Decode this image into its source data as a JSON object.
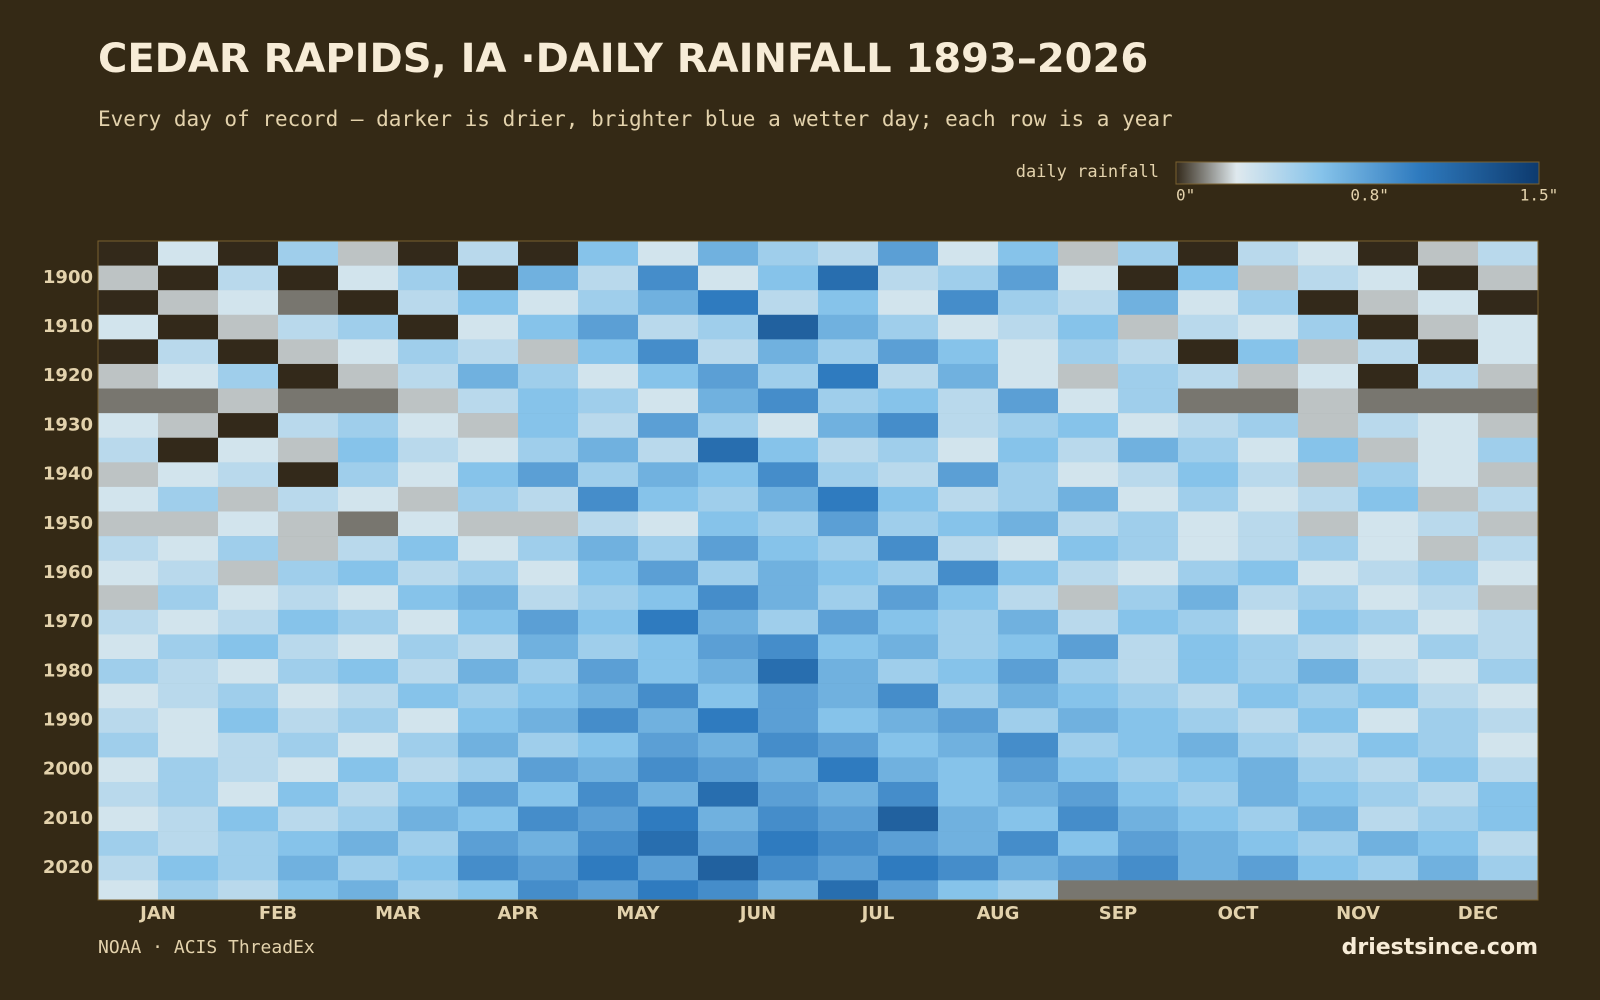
{
  "chart_data": {
    "type": "heatmap",
    "title": "CEDAR RAPIDS, IA ·DAILY RAINFALL 1893–2026",
    "subtitle": "Every day of record — darker is drier, brighter blue a wetter day; each row is a year",
    "legend_title": "daily rainfall",
    "colorbar_lim": [
      0,
      1.5
    ],
    "colorbar_ticks": [
      {
        "value": 0,
        "label": "0\""
      },
      {
        "value": 0.8,
        "label": "0.8\""
      },
      {
        "value": 1.5,
        "label": "1.5\""
      }
    ],
    "colorscale": [
      [
        0,
        "#33291a"
      ],
      [
        0.25,
        "#dfe9ee"
      ],
      [
        0.6,
        "#86c3ea"
      ],
      [
        1.0,
        "#2f7bbf"
      ],
      [
        1.5,
        "#0d3a6e"
      ]
    ],
    "categories": [
      "JAN",
      "FEB",
      "MAR",
      "APR",
      "MAY",
      "JUN",
      "JUL",
      "AUG",
      "SEP",
      "OCT",
      "NOV",
      "DEC"
    ],
    "ylim": [
      1892.5,
      2026.5
    ],
    "yticks": [
      1900,
      1910,
      1920,
      1930,
      1940,
      1950,
      1960,
      1970,
      1980,
      1990,
      2000,
      2010,
      2020
    ],
    "rows": [
      1893,
      1898,
      1903,
      1908,
      1913,
      1918,
      1923,
      1928,
      1933,
      1938,
      1943,
      1948,
      1953,
      1958,
      1963,
      1968,
      1973,
      1978,
      1983,
      1988,
      1993,
      1998,
      2003,
      2008,
      2013,
      2018,
      2023
    ],
    "values": [
      [
        0,
        0.3,
        0,
        0.5,
        0.2,
        0,
        0.4,
        0,
        0.6,
        0.3,
        0.7,
        0.5,
        0.4,
        0.8,
        0.3,
        0.6,
        0.2,
        0.5,
        0,
        0.4,
        0.3,
        0,
        0.2,
        0.4
      ],
      [
        0.2,
        0,
        0.4,
        0,
        0.3,
        0.5,
        0,
        0.7,
        0.4,
        0.9,
        0.3,
        0.6,
        1.1,
        0.4,
        0.5,
        0.8,
        0.3,
        0,
        0.6,
        0.2,
        0.4,
        0.3,
        0,
        0.2
      ],
      [
        0,
        0.2,
        0.3,
        0.1,
        0,
        0.4,
        0.6,
        0.3,
        0.5,
        0.7,
        1.0,
        0.4,
        0.6,
        0.3,
        0.9,
        0.5,
        0.4,
        0.7,
        0.3,
        0.5,
        0,
        0.2,
        0.3,
        0
      ],
      [
        0.3,
        0,
        0.2,
        0.4,
        0.5,
        0,
        0.3,
        0.6,
        0.8,
        0.4,
        0.5,
        1.2,
        0.7,
        0.5,
        0.3,
        0.4,
        0.6,
        0.2,
        0.4,
        0.3,
        0.5,
        0,
        0.2,
        0.3
      ],
      [
        0,
        0.4,
        0,
        0.2,
        0.3,
        0.5,
        0.4,
        0.2,
        0.6,
        0.9,
        0.4,
        0.7,
        0.5,
        0.8,
        0.6,
        0.3,
        0.5,
        0.4,
        0,
        0.6,
        0.2,
        0.4,
        0,
        0.3
      ],
      [
        0.2,
        0.3,
        0.5,
        0,
        0.2,
        0.4,
        0.7,
        0.5,
        0.3,
        0.6,
        0.8,
        0.5,
        1.0,
        0.4,
        0.7,
        0.3,
        0.2,
        0.5,
        0.4,
        0.2,
        0.3,
        0,
        0.4,
        0.2
      ],
      [
        0.1,
        0.1,
        0.2,
        0.1,
        0.1,
        0.2,
        0.4,
        0.6,
        0.5,
        0.3,
        0.7,
        0.9,
        0.5,
        0.6,
        0.4,
        0.8,
        0.3,
        0.5,
        0.1,
        0.1,
        0.2,
        0.1,
        0.1,
        0.1
      ],
      [
        0.3,
        0.2,
        0,
        0.4,
        0.5,
        0.3,
        0.2,
        0.6,
        0.4,
        0.8,
        0.5,
        0.3,
        0.7,
        0.9,
        0.4,
        0.5,
        0.6,
        0.3,
        0.4,
        0.5,
        0.2,
        0.4,
        0.3,
        0.2
      ],
      [
        0.4,
        0,
        0.3,
        0.2,
        0.6,
        0.4,
        0.3,
        0.5,
        0.7,
        0.4,
        1.1,
        0.6,
        0.4,
        0.5,
        0.3,
        0.6,
        0.4,
        0.7,
        0.5,
        0.3,
        0.6,
        0.2,
        0.3,
        0.5
      ],
      [
        0.2,
        0.3,
        0.4,
        0,
        0.5,
        0.3,
        0.6,
        0.8,
        0.5,
        0.7,
        0.6,
        0.9,
        0.5,
        0.4,
        0.8,
        0.5,
        0.3,
        0.4,
        0.6,
        0.4,
        0.2,
        0.5,
        0.3,
        0.2
      ],
      [
        0.3,
        0.5,
        0.2,
        0.4,
        0.3,
        0.2,
        0.5,
        0.4,
        0.9,
        0.6,
        0.5,
        0.7,
        1.0,
        0.6,
        0.4,
        0.5,
        0.7,
        0.3,
        0.5,
        0.3,
        0.4,
        0.6,
        0.2,
        0.4
      ],
      [
        0.2,
        0.2,
        0.3,
        0.2,
        0.1,
        0.3,
        0.2,
        0.2,
        0.4,
        0.3,
        0.6,
        0.5,
        0.8,
        0.5,
        0.6,
        0.7,
        0.4,
        0.5,
        0.3,
        0.4,
        0.2,
        0.3,
        0.4,
        0.2
      ],
      [
        0.4,
        0.3,
        0.5,
        0.2,
        0.4,
        0.6,
        0.3,
        0.5,
        0.7,
        0.5,
        0.8,
        0.6,
        0.5,
        0.9,
        0.4,
        0.3,
        0.6,
        0.5,
        0.3,
        0.4,
        0.5,
        0.3,
        0.2,
        0.4
      ],
      [
        0.3,
        0.4,
        0.2,
        0.5,
        0.6,
        0.4,
        0.5,
        0.3,
        0.6,
        0.8,
        0.5,
        0.7,
        0.6,
        0.5,
        0.9,
        0.6,
        0.4,
        0.3,
        0.5,
        0.6,
        0.3,
        0.4,
        0.5,
        0.3
      ],
      [
        0.2,
        0.5,
        0.3,
        0.4,
        0.3,
        0.6,
        0.7,
        0.4,
        0.5,
        0.6,
        0.9,
        0.7,
        0.5,
        0.8,
        0.6,
        0.4,
        0.2,
        0.5,
        0.7,
        0.4,
        0.5,
        0.3,
        0.4,
        0.2
      ],
      [
        0.4,
        0.3,
        0.4,
        0.6,
        0.5,
        0.3,
        0.6,
        0.8,
        0.6,
        1.0,
        0.7,
        0.5,
        0.8,
        0.6,
        0.5,
        0.7,
        0.4,
        0.6,
        0.5,
        0.3,
        0.6,
        0.5,
        0.3,
        0.4
      ],
      [
        0.3,
        0.5,
        0.6,
        0.4,
        0.3,
        0.5,
        0.4,
        0.7,
        0.5,
        0.6,
        0.8,
        0.9,
        0.6,
        0.7,
        0.5,
        0.6,
        0.8,
        0.4,
        0.6,
        0.5,
        0.4,
        0.3,
        0.5,
        0.4
      ],
      [
        0.5,
        0.4,
        0.3,
        0.5,
        0.6,
        0.4,
        0.7,
        0.5,
        0.8,
        0.6,
        0.7,
        1.1,
        0.7,
        0.5,
        0.6,
        0.8,
        0.5,
        0.4,
        0.6,
        0.5,
        0.7,
        0.4,
        0.3,
        0.5
      ],
      [
        0.3,
        0.4,
        0.5,
        0.3,
        0.4,
        0.6,
        0.5,
        0.6,
        0.7,
        0.9,
        0.6,
        0.8,
        0.7,
        0.9,
        0.5,
        0.7,
        0.6,
        0.5,
        0.4,
        0.6,
        0.5,
        0.6,
        0.4,
        0.3
      ],
      [
        0.4,
        0.3,
        0.6,
        0.4,
        0.5,
        0.3,
        0.6,
        0.7,
        0.9,
        0.7,
        1.0,
        0.8,
        0.6,
        0.7,
        0.8,
        0.5,
        0.7,
        0.6,
        0.5,
        0.4,
        0.6,
        0.3,
        0.5,
        0.4
      ],
      [
        0.5,
        0.3,
        0.4,
        0.5,
        0.3,
        0.5,
        0.7,
        0.5,
        0.6,
        0.8,
        0.7,
        0.9,
        0.8,
        0.6,
        0.7,
        0.9,
        0.5,
        0.6,
        0.7,
        0.5,
        0.4,
        0.6,
        0.5,
        0.3
      ],
      [
        0.3,
        0.5,
        0.4,
        0.3,
        0.6,
        0.4,
        0.5,
        0.8,
        0.7,
        0.9,
        0.8,
        0.7,
        1.0,
        0.7,
        0.6,
        0.8,
        0.6,
        0.5,
        0.6,
        0.7,
        0.5,
        0.4,
        0.6,
        0.4
      ],
      [
        0.4,
        0.5,
        0.3,
        0.6,
        0.4,
        0.6,
        0.8,
        0.6,
        0.9,
        0.7,
        1.1,
        0.8,
        0.7,
        0.9,
        0.6,
        0.7,
        0.8,
        0.6,
        0.5,
        0.7,
        0.6,
        0.5,
        0.4,
        0.6
      ],
      [
        0.3,
        0.4,
        0.6,
        0.4,
        0.5,
        0.7,
        0.6,
        0.9,
        0.8,
        1.0,
        0.7,
        0.9,
        0.8,
        1.2,
        0.7,
        0.6,
        0.9,
        0.7,
        0.6,
        0.5,
        0.7,
        0.4,
        0.5,
        0.6
      ],
      [
        0.5,
        0.4,
        0.5,
        0.6,
        0.7,
        0.5,
        0.8,
        0.7,
        0.9,
        1.1,
        0.8,
        1.0,
        0.9,
        0.8,
        0.7,
        0.9,
        0.6,
        0.8,
        0.7,
        0.6,
        0.5,
        0.7,
        0.6,
        0.4
      ],
      [
        0.4,
        0.6,
        0.5,
        0.7,
        0.5,
        0.6,
        0.9,
        0.8,
        1.0,
        0.8,
        1.2,
        0.9,
        0.8,
        1.0,
        0.9,
        0.7,
        0.8,
        0.9,
        0.7,
        0.8,
        0.6,
        0.5,
        0.7,
        0.5
      ],
      [
        0.3,
        0.5,
        0.4,
        0.6,
        0.7,
        0.5,
        0.6,
        0.9,
        0.8,
        1.0,
        0.9,
        0.7,
        1.1,
        0.8,
        0.6,
        0.5,
        0.1,
        0.1,
        0.1,
        0.1,
        0.1,
        0.1,
        0.1,
        0.1
      ]
    ],
    "source": "NOAA · ACIS ThreadEx",
    "brand": "driestsince.com"
  }
}
